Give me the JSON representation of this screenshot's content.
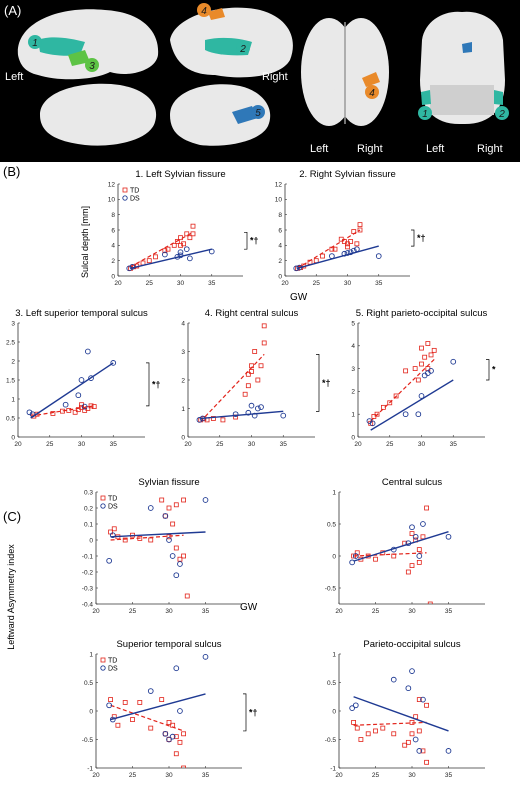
{
  "panel_a": {
    "label": "(A)",
    "views": [
      {
        "side": "Left",
        "markers": [
          "1",
          "3"
        ]
      },
      {
        "side": "Right",
        "markers": [
          "4",
          "2"
        ]
      },
      {
        "side": "",
        "markers": [
          "5"
        ]
      },
      {
        "side": "",
        "markers": []
      }
    ],
    "top_view": {
      "left": "Left",
      "right": "Right",
      "marker": "4"
    },
    "coronal_view": {
      "left": "Left",
      "right": "Right",
      "markers": [
        "1",
        "2"
      ]
    },
    "marker_colors": {
      "1": "#2fb7a2",
      "2": "#2fb7a2",
      "3": "#5dc345",
      "4": "#e98a2a",
      "5": "#2f78b8"
    },
    "brain_color": "#e9e9e9",
    "background": "#000000"
  },
  "panel_b": {
    "label": "(B)",
    "ylabel": "Sulcal depth [mm]",
    "xlabel": "GW"
  },
  "panel_c": {
    "label": "(C)",
    "ylabel": "Leftward Asymmetry index",
    "xlabel": "GW"
  },
  "legend": {
    "td": "TD",
    "ds": "DS"
  },
  "colors": {
    "td": "#e2231a",
    "ds": "#1f3a93",
    "axis": "#333333"
  },
  "chart_data": [
    {
      "type": "scatter",
      "panel": "B",
      "title": "1. Left Sylvian fissure",
      "xlim": [
        20,
        40
      ],
      "ylim": [
        0,
        12
      ],
      "xticks": [
        20,
        25,
        30,
        35
      ],
      "yticks": [
        0,
        2,
        4,
        6,
        8,
        10,
        12
      ],
      "significance": "*†",
      "show_legend": true,
      "series": [
        {
          "name": "TD",
          "x": [
            22.0,
            22.5,
            23.0,
            24.0,
            25.0,
            26.0,
            27.5,
            28.0,
            29.0,
            29.5,
            30.0,
            30.0,
            30.5,
            31.0,
            31.5,
            32.0,
            32.0
          ],
          "y": [
            1.0,
            1.2,
            1.3,
            1.7,
            2.0,
            2.5,
            3.3,
            3.5,
            4.0,
            4.5,
            4.0,
            5.0,
            4.2,
            5.5,
            5.0,
            6.5,
            5.5
          ],
          "fit": [
            [
              22,
              1.2
            ],
            [
              32,
              5.7
            ]
          ]
        },
        {
          "name": "DS",
          "x": [
            21.8,
            22.3,
            27.5,
            29.5,
            30.0,
            30.0,
            31.0,
            31.5,
            35.0
          ],
          "y": [
            1.0,
            1.2,
            2.8,
            2.5,
            3.1,
            2.7,
            3.5,
            2.3,
            3.2
          ],
          "fit": [
            [
              22,
              1.0
            ],
            [
              35,
              3.5
            ]
          ]
        }
      ]
    },
    {
      "type": "scatter",
      "panel": "B",
      "title": "2. Right Sylvian fissure",
      "xlim": [
        20,
        40
      ],
      "ylim": [
        0,
        12
      ],
      "xticks": [
        20,
        25,
        30,
        35
      ],
      "yticks": [
        0,
        2,
        4,
        6,
        8,
        10,
        12
      ],
      "significance": "*†",
      "show_legend": false,
      "series": [
        {
          "name": "TD",
          "x": [
            22.0,
            22.5,
            23.0,
            24.0,
            25.0,
            26.0,
            27.5,
            28.0,
            29.0,
            29.5,
            30.0,
            30.0,
            30.5,
            31.0,
            31.5,
            32.0,
            32.0
          ],
          "y": [
            1.0,
            1.1,
            1.3,
            1.8,
            2.0,
            2.6,
            3.5,
            3.5,
            4.8,
            4.5,
            4.2,
            3.8,
            4.5,
            5.8,
            4.2,
            6.7,
            6.0
          ],
          "fit": [
            [
              22,
              1.0
            ],
            [
              32,
              6.0
            ]
          ]
        },
        {
          "name": "DS",
          "x": [
            21.8,
            22.3,
            27.5,
            29.5,
            30.0,
            30.5,
            31.0,
            31.5,
            35.0
          ],
          "y": [
            1.0,
            1.1,
            2.6,
            2.9,
            3.0,
            3.1,
            3.3,
            3.5,
            2.6
          ],
          "fit": [
            [
              22,
              1.0
            ],
            [
              35,
              3.9
            ]
          ]
        }
      ]
    },
    {
      "type": "scatter",
      "panel": "B",
      "title": "3. Left superior temporal sulcus",
      "xlim": [
        20,
        40
      ],
      "ylim": [
        0,
        3
      ],
      "xticks": [
        20,
        25,
        30,
        35
      ],
      "yticks": [
        0,
        0.5,
        1,
        1.5,
        2,
        2.5,
        3
      ],
      "significance": "*†",
      "show_legend": false,
      "series": [
        {
          "name": "TD",
          "x": [
            22.5,
            23.0,
            25.5,
            27.0,
            28.0,
            29.0,
            29.5,
            30.0,
            30.0,
            30.5,
            31.0,
            31.5,
            32.0
          ],
          "y": [
            0.55,
            0.6,
            0.62,
            0.68,
            0.7,
            0.65,
            0.72,
            0.78,
            0.85,
            0.7,
            0.75,
            0.82,
            0.8
          ],
          "fit": [
            [
              22,
              0.55
            ],
            [
              32,
              0.82
            ]
          ]
        },
        {
          "name": "DS",
          "x": [
            21.8,
            22.3,
            27.5,
            29.5,
            30.0,
            30.5,
            31.0,
            31.5,
            35.0
          ],
          "y": [
            0.65,
            0.6,
            0.85,
            1.1,
            1.5,
            0.8,
            2.25,
            1.55,
            1.95
          ],
          "fit": [
            [
              22,
              0.5
            ],
            [
              35,
              1.95
            ]
          ]
        }
      ]
    },
    {
      "type": "scatter",
      "panel": "B",
      "title": "4. Right central sulcus",
      "xlim": [
        20,
        40
      ],
      "ylim": [
        0,
        4
      ],
      "xticks": [
        20,
        25,
        30,
        35
      ],
      "yticks": [
        0,
        1,
        2,
        3,
        4
      ],
      "significance": "*†",
      "show_legend": false,
      "series": [
        {
          "name": "TD",
          "x": [
            22.0,
            22.5,
            23.0,
            24.0,
            25.5,
            27.5,
            29.0,
            29.5,
            29.5,
            30.0,
            30.0,
            30.5,
            31.0,
            31.5,
            32.0,
            32.0
          ],
          "y": [
            0.6,
            0.65,
            0.6,
            0.65,
            0.6,
            0.7,
            1.5,
            1.8,
            2.2,
            2.5,
            2.3,
            3.0,
            2.0,
            2.5,
            3.3,
            3.9
          ],
          "fit": [
            [
              22,
              0.55
            ],
            [
              32,
              2.9
            ]
          ]
        },
        {
          "name": "DS",
          "x": [
            21.8,
            22.3,
            27.5,
            29.5,
            30.0,
            30.5,
            31.0,
            31.5,
            35.0
          ],
          "y": [
            0.6,
            0.65,
            0.8,
            0.85,
            1.1,
            0.75,
            1.0,
            1.05,
            0.75
          ],
          "fit": [
            [
              22,
              0.65
            ],
            [
              35,
              0.9
            ]
          ]
        }
      ]
    },
    {
      "type": "scatter",
      "panel": "B",
      "title": "5. Right parieto-occipital sulcus",
      "xlim": [
        20,
        40
      ],
      "ylim": [
        0,
        5
      ],
      "xticks": [
        20,
        25,
        30,
        35
      ],
      "yticks": [
        0,
        1,
        2,
        3,
        4,
        5
      ],
      "significance": "*",
      "show_legend": false,
      "series": [
        {
          "name": "TD",
          "x": [
            22.0,
            22.5,
            23.0,
            24.0,
            25.0,
            26.0,
            27.5,
            29.0,
            29.5,
            30.0,
            30.0,
            30.5,
            31.0,
            31.0,
            31.5,
            32.0
          ],
          "y": [
            0.6,
            0.9,
            1.0,
            1.3,
            1.5,
            1.8,
            2.9,
            3.0,
            2.5,
            3.2,
            3.9,
            3.5,
            4.1,
            3.0,
            3.6,
            3.8
          ],
          "fit": [
            [
              22,
              0.7
            ],
            [
              32,
              3.4
            ]
          ]
        },
        {
          "name": "DS",
          "x": [
            21.8,
            22.3,
            27.5,
            29.5,
            30.0,
            30.5,
            31.0,
            31.5,
            35.0
          ],
          "y": [
            0.7,
            0.6,
            1.0,
            1.0,
            1.8,
            2.7,
            2.8,
            2.9,
            3.3
          ],
          "fit": [
            [
              22,
              0.3
            ],
            [
              35,
              2.5
            ]
          ]
        }
      ]
    },
    {
      "type": "scatter",
      "panel": "C",
      "title": "Sylvian fissure",
      "xlim": [
        20,
        40
      ],
      "ylim": [
        -0.4,
        0.3
      ],
      "xticks": [
        20,
        25,
        30,
        35
      ],
      "yticks": [
        -0.4,
        -0.3,
        -0.2,
        -0.1,
        0,
        0.1,
        0.2,
        0.3
      ],
      "significance": "",
      "show_legend": true,
      "series": [
        {
          "name": "TD",
          "x": [
            22.0,
            22.5,
            23.0,
            24.0,
            25.0,
            26.0,
            27.5,
            29.0,
            29.5,
            30.0,
            30.0,
            30.5,
            31.0,
            31.0,
            31.5,
            32.0,
            32.0,
            32.5
          ],
          "y": [
            0.05,
            0.07,
            0.02,
            0.0,
            0.03,
            0.01,
            0.0,
            0.25,
            0.15,
            0.2,
            0.02,
            0.1,
            0.22,
            -0.05,
            -0.12,
            0.25,
            -0.1,
            -0.35
          ],
          "fit": [
            [
              22,
              0.0
            ],
            [
              32,
              0.03
            ]
          ]
        },
        {
          "name": "DS",
          "x": [
            21.8,
            22.3,
            27.5,
            29.5,
            30.0,
            30.5,
            31.0,
            31.5,
            35.0
          ],
          "y": [
            -0.13,
            0.03,
            0.2,
            0.15,
            0.0,
            -0.1,
            -0.22,
            -0.15,
            0.25
          ],
          "fit": [
            [
              22,
              0.02
            ],
            [
              35,
              0.05
            ]
          ]
        }
      ]
    },
    {
      "type": "scatter",
      "panel": "C",
      "title": "Central sulcus",
      "xlim": [
        20,
        40
      ],
      "ylim": [
        -0.75,
        1
      ],
      "xticks": [
        20,
        25,
        30,
        35
      ],
      "yticks": [
        -0.5,
        0,
        0.5,
        1
      ],
      "significance": "",
      "show_legend": false,
      "series": [
        {
          "name": "TD",
          "x": [
            22.0,
            22.5,
            23.0,
            24.0,
            25.0,
            26.0,
            27.5,
            29.0,
            29.5,
            30.0,
            30.0,
            30.5,
            31.0,
            31.0,
            31.5,
            32.0,
            32.0,
            32.5
          ],
          "y": [
            0.0,
            0.05,
            -0.05,
            0.0,
            -0.05,
            0.05,
            0.0,
            0.2,
            -0.25,
            0.35,
            -0.15,
            0.25,
            -0.1,
            0.1,
            0.3,
            1.05,
            0.75,
            -0.75
          ],
          "fit": [
            [
              22,
              0.0
            ],
            [
              32,
              0.05
            ]
          ]
        },
        {
          "name": "DS",
          "x": [
            21.8,
            22.3,
            27.5,
            29.5,
            30.0,
            30.5,
            31.0,
            31.5,
            35.0
          ],
          "y": [
            -0.1,
            0.0,
            0.1,
            0.2,
            0.45,
            0.3,
            0.0,
            0.5,
            0.3
          ],
          "fit": [
            [
              22,
              -0.08
            ],
            [
              35,
              0.38
            ]
          ]
        }
      ]
    },
    {
      "type": "scatter",
      "panel": "C",
      "title": "Superior temporal sulcus",
      "xlim": [
        20,
        40
      ],
      "ylim": [
        -1,
        1
      ],
      "xticks": [
        20,
        25,
        30,
        35
      ],
      "yticks": [
        -1,
        -0.5,
        0,
        0.5,
        1
      ],
      "significance": "*†",
      "show_legend": true,
      "series": [
        {
          "name": "TD",
          "x": [
            22.0,
            22.5,
            23.0,
            24.0,
            25.0,
            26.0,
            27.5,
            29.0,
            29.5,
            30.0,
            30.0,
            30.5,
            31.0,
            31.0,
            31.5,
            32.0,
            32.0
          ],
          "y": [
            0.2,
            -0.1,
            -0.25,
            0.15,
            -0.15,
            0.15,
            -0.3,
            0.2,
            -0.4,
            -0.5,
            -0.2,
            -0.25,
            -0.45,
            -0.75,
            -0.55,
            -1.0,
            -0.4
          ],
          "fit": [
            [
              22,
              0.1
            ],
            [
              32,
              -0.35
            ]
          ]
        },
        {
          "name": "DS",
          "x": [
            21.8,
            22.3,
            27.5,
            29.5,
            30.0,
            30.5,
            31.0,
            31.5,
            35.0
          ],
          "y": [
            0.1,
            -0.15,
            0.35,
            -0.4,
            -0.5,
            -0.45,
            0.75,
            0.0,
            0.95
          ],
          "fit": [
            [
              22,
              -0.15
            ],
            [
              35,
              0.3
            ]
          ]
        }
      ]
    },
    {
      "type": "scatter",
      "panel": "C",
      "title": "Parieto-occipital sulcus",
      "xlim": [
        20,
        40
      ],
      "ylim": [
        -1,
        1
      ],
      "xticks": [
        20,
        25,
        30,
        35
      ],
      "yticks": [
        -1,
        -0.5,
        0,
        0.5,
        1
      ],
      "significance": "",
      "show_legend": false,
      "series": [
        {
          "name": "TD",
          "x": [
            22.0,
            22.5,
            23.0,
            24.0,
            25.0,
            26.0,
            27.5,
            29.0,
            29.5,
            30.0,
            30.0,
            30.5,
            31.0,
            31.0,
            31.5,
            32.0,
            32.0
          ],
          "y": [
            -0.2,
            -0.3,
            -0.5,
            -0.4,
            -0.35,
            -0.3,
            -0.4,
            -0.6,
            -0.55,
            -0.4,
            -0.2,
            -0.1,
            0.2,
            -0.35,
            -0.7,
            -0.9,
            0.1
          ],
          "fit": [
            [
              22,
              -0.25
            ],
            [
              32,
              -0.2
            ]
          ]
        },
        {
          "name": "DS",
          "x": [
            21.8,
            22.3,
            27.5,
            29.5,
            30.0,
            30.5,
            31.0,
            31.5,
            35.0
          ],
          "y": [
            0.05,
            0.1,
            0.55,
            0.4,
            0.7,
            -0.5,
            -0.7,
            0.2,
            -0.7
          ],
          "fit": [
            [
              22,
              0.25
            ],
            [
              35,
              -0.35
            ]
          ]
        }
      ]
    }
  ]
}
